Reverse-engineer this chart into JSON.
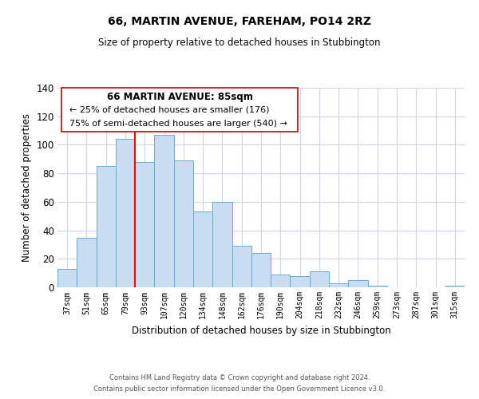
{
  "title": "66, MARTIN AVENUE, FAREHAM, PO14 2RZ",
  "subtitle": "Size of property relative to detached houses in Stubbington",
  "xlabel": "Distribution of detached houses by size in Stubbington",
  "ylabel": "Number of detached properties",
  "bar_labels": [
    "37sqm",
    "51sqm",
    "65sqm",
    "79sqm",
    "93sqm",
    "107sqm",
    "120sqm",
    "134sqm",
    "148sqm",
    "162sqm",
    "176sqm",
    "190sqm",
    "204sqm",
    "218sqm",
    "232sqm",
    "246sqm",
    "259sqm",
    "273sqm",
    "287sqm",
    "301sqm",
    "315sqm"
  ],
  "bar_values": [
    13,
    35,
    85,
    104,
    88,
    107,
    89,
    53,
    60,
    29,
    24,
    9,
    8,
    11,
    3,
    5,
    1,
    0,
    0,
    0,
    1
  ],
  "bar_color": "#c9ddf2",
  "bar_edge_color": "#6aaad4",
  "ylim": [
    0,
    140
  ],
  "yticks": [
    0,
    20,
    40,
    60,
    80,
    100,
    120,
    140
  ],
  "red_line_x": 3.5,
  "annotation_title": "66 MARTIN AVENUE: 85sqm",
  "annotation_line1": "← 25% of detached houses are smaller (176)",
  "annotation_line2": "75% of semi-detached houses are larger (540) →",
  "footnote1": "Contains HM Land Registry data © Crown copyright and database right 2024.",
  "footnote2": "Contains public sector information licensed under the Open Government Licence v3.0.",
  "background_color": "#ffffff",
  "grid_color": "#cdd6e8"
}
